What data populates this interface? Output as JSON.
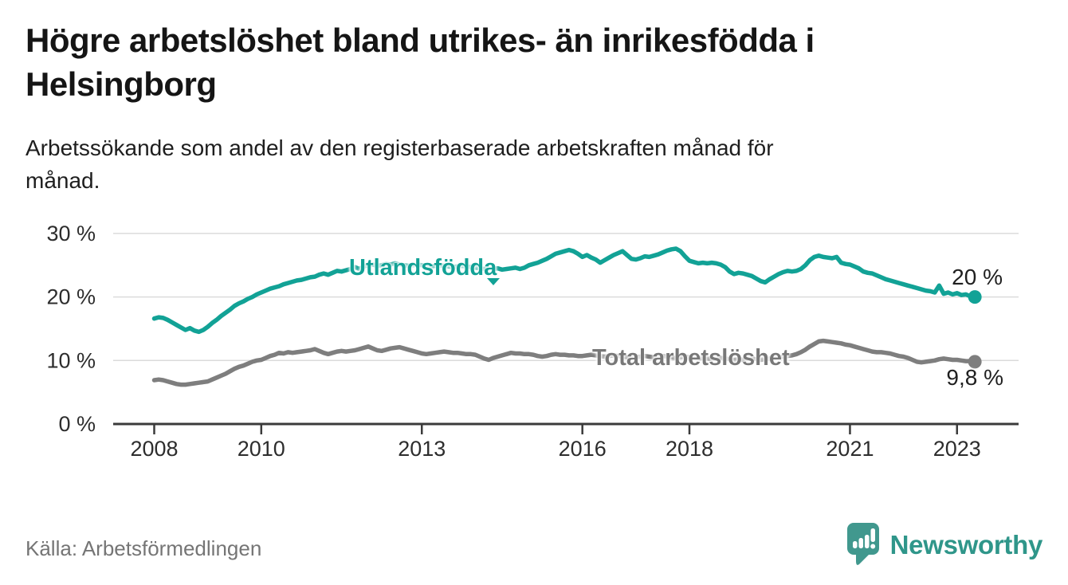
{
  "header": {
    "title_lines": [
      "Högre arbetslöshet bland utrikes- än inrikesfödda i",
      "Helsingborg"
    ],
    "subtitle_lines": [
      "Arbetssökande som andel av den registerbaserade arbetskraften månad för",
      "månad."
    ]
  },
  "footer": {
    "source": "Källa: Arbetsförmedlingen",
    "brand_name": "Newsworthy",
    "brand_icon": "newsworthy-speech-bubble-bar-chart-icon"
  },
  "colors": {
    "foreign_series": "#12a296",
    "total_series": "#7e7e7e",
    "grid": "#dbdbdb",
    "axis": "#3b3b3b",
    "tick_text": "#2d2d2d",
    "brand_teal": "#41988e"
  },
  "chart_data": {
    "type": "line",
    "title": "Högre arbetslöshet bland utrikes- än inrikesfödda i Helsingborg",
    "subtitle": "Arbetssökande som andel av den registerbaserade arbetskraften månad för månad.",
    "unit": "%",
    "x_start_year": 2008,
    "x_resolution": "monthly",
    "x_end_label_period": "maj 2023",
    "xlim": [
      2007.25,
      2024.2
    ],
    "ylim": [
      0,
      33
    ],
    "grid": true,
    "x_ticks": [
      2008,
      2010,
      2013,
      2016,
      2018,
      2021,
      2023
    ],
    "x_tick_labels": [
      "2008",
      "2010",
      "2013",
      "2016",
      "2018",
      "2021",
      "2023"
    ],
    "y_ticks": [
      0,
      10,
      20,
      30
    ],
    "y_tick_labels": [
      "0 %",
      "10 %",
      "20 %",
      "30 %"
    ],
    "series": [
      {
        "name": "Utlandsfödda",
        "color": "#12a296",
        "end_label": "20 %",
        "end_value": 20.0,
        "values": [
          16.6,
          16.8,
          16.7,
          16.4,
          16.0,
          15.6,
          15.2,
          14.8,
          15.1,
          14.7,
          14.5,
          14.8,
          15.3,
          15.9,
          16.4,
          17.0,
          17.5,
          18.0,
          18.6,
          19.0,
          19.3,
          19.7,
          20.0,
          20.4,
          20.7,
          21.0,
          21.3,
          21.5,
          21.7,
          22.0,
          22.2,
          22.4,
          22.6,
          22.7,
          22.9,
          23.1,
          23.2,
          23.5,
          23.7,
          23.5,
          23.8,
          24.1,
          24.0,
          24.2,
          24.4,
          24.7,
          24.4,
          24.8,
          25.0,
          25.1,
          24.9,
          25.0,
          25.2,
          25.1,
          25.3,
          25.1,
          25.0,
          24.9,
          25.0,
          25.1,
          25.0,
          24.9,
          24.8,
          24.9,
          25.0,
          24.9,
          24.8,
          24.7,
          24.8,
          24.9,
          24.8,
          24.7,
          24.6,
          24.5,
          24.4,
          24.5,
          24.4,
          24.5,
          24.3,
          24.4,
          24.5,
          24.6,
          24.4,
          24.6,
          25.0,
          25.2,
          25.4,
          25.7,
          26.0,
          26.4,
          26.8,
          27.0,
          27.2,
          27.4,
          27.2,
          26.8,
          26.3,
          26.6,
          26.2,
          25.9,
          25.4,
          25.8,
          26.2,
          26.6,
          26.9,
          27.2,
          26.6,
          26.0,
          25.9,
          26.1,
          26.4,
          26.3,
          26.5,
          26.7,
          27.0,
          27.3,
          27.5,
          27.6,
          27.2,
          26.4,
          25.7,
          25.5,
          25.3,
          25.4,
          25.3,
          25.4,
          25.3,
          25.1,
          24.7,
          24.0,
          23.6,
          23.8,
          23.7,
          23.5,
          23.3,
          22.9,
          22.5,
          22.3,
          22.8,
          23.2,
          23.6,
          23.9,
          24.1,
          24.0,
          24.1,
          24.4,
          25.0,
          25.8,
          26.3,
          26.5,
          26.3,
          26.2,
          26.1,
          26.3,
          25.4,
          25.2,
          25.1,
          24.8,
          24.5,
          24.0,
          23.8,
          23.7,
          23.4,
          23.1,
          22.8,
          22.6,
          22.4,
          22.2,
          22.0,
          21.8,
          21.6,
          21.4,
          21.2,
          21.0,
          20.9,
          20.7,
          21.8,
          20.5,
          20.7,
          20.4,
          20.6,
          20.3,
          20.4,
          20.1,
          20.0
        ]
      },
      {
        "name": "Total arbetslöshet",
        "color": "#7e7e7e",
        "end_label": "9,8 %",
        "end_value": 9.8,
        "values": [
          6.9,
          7.0,
          6.9,
          6.7,
          6.5,
          6.3,
          6.2,
          6.2,
          6.3,
          6.4,
          6.5,
          6.6,
          6.7,
          7.0,
          7.3,
          7.6,
          7.9,
          8.3,
          8.7,
          9.0,
          9.2,
          9.5,
          9.8,
          10.0,
          10.1,
          10.4,
          10.7,
          10.9,
          11.2,
          11.1,
          11.3,
          11.2,
          11.3,
          11.4,
          11.5,
          11.6,
          11.8,
          11.5,
          11.2,
          11.0,
          11.2,
          11.4,
          11.5,
          11.4,
          11.5,
          11.6,
          11.8,
          12.0,
          12.2,
          11.9,
          11.6,
          11.5,
          11.7,
          11.9,
          12.0,
          12.1,
          11.9,
          11.7,
          11.5,
          11.3,
          11.1,
          11.0,
          11.1,
          11.2,
          11.3,
          11.4,
          11.3,
          11.2,
          11.2,
          11.1,
          11.0,
          11.0,
          10.9,
          10.6,
          10.3,
          10.1,
          10.4,
          10.6,
          10.8,
          11.0,
          11.2,
          11.1,
          11.1,
          11.0,
          11.0,
          10.9,
          10.7,
          10.6,
          10.7,
          10.9,
          11.0,
          10.9,
          10.9,
          10.8,
          10.8,
          10.7,
          10.7,
          10.8,
          10.9,
          10.8,
          10.7,
          10.6,
          10.7,
          10.8,
          10.7,
          10.6,
          10.5,
          10.6,
          10.5,
          10.6,
          10.7,
          10.6,
          10.5,
          10.6,
          10.7,
          10.6,
          10.5,
          10.4,
          10.5,
          10.6,
          10.5,
          10.4,
          10.3,
          10.4,
          10.3,
          10.2,
          10.3,
          10.4,
          10.3,
          10.2,
          10.1,
          10.2,
          10.1,
          10.2,
          10.3,
          10.2,
          10.1,
          10.2,
          10.3,
          10.4,
          10.5,
          10.6,
          10.7,
          10.8,
          11.0,
          11.3,
          11.7,
          12.2,
          12.6,
          13.0,
          13.1,
          13.0,
          12.9,
          12.8,
          12.7,
          12.5,
          12.4,
          12.2,
          12.0,
          11.8,
          11.6,
          11.4,
          11.3,
          11.3,
          11.2,
          11.1,
          10.9,
          10.7,
          10.6,
          10.4,
          10.1,
          9.8,
          9.7,
          9.8,
          9.9,
          10.0,
          10.2,
          10.3,
          10.2,
          10.1,
          10.1,
          10.0,
          9.9,
          9.9,
          9.8
        ]
      }
    ]
  }
}
